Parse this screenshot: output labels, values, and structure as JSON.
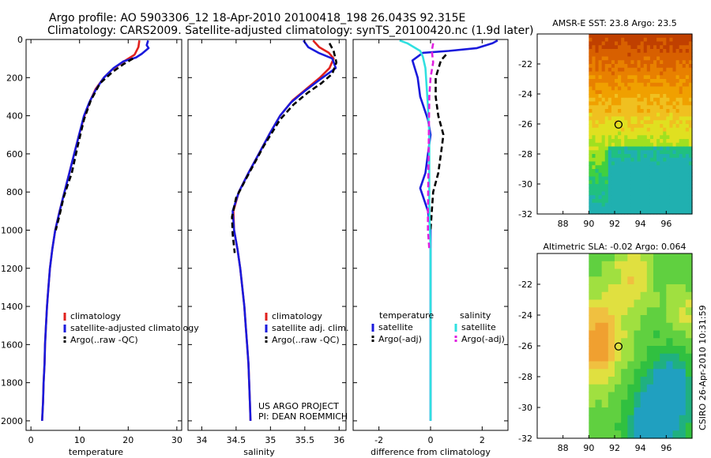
{
  "header": {
    "line1": "Argo profile: AO 5903306_12 18-Apr-2010 20100418_198 26.043S 92.315E",
    "line2": "Climatology: CARS2009. Satellite-adjusted climatology: synTS_20100420.nc (1.9d later)"
  },
  "stamp": "CSIRO 26-Apr-2010 10:31:59",
  "project_note": {
    "line1": "US ARGO PROJECT",
    "line2": "PI: DEAN ROEMMICH"
  },
  "colors": {
    "climatology": "#e0201c",
    "satellite": "#1a1adc",
    "argo": "#000000",
    "sat_salinity": "#30e0e0",
    "argo_salinity": "#e020e0",
    "axis": "#000000"
  },
  "chart_data": [
    {
      "id": "temperature",
      "type": "line",
      "xlabel": "temperature",
      "xlim": [
        -1,
        31
      ],
      "ylim": [
        2050,
        0
      ],
      "xticks": [
        0,
        10,
        20,
        30
      ],
      "yticks": [
        0,
        200,
        400,
        600,
        800,
        1000,
        1200,
        1400,
        1600,
        1800,
        2000
      ],
      "legend": [
        "climatology",
        "satellite-adjusted climatology",
        "Argo(..raw -QC)"
      ],
      "series": [
        {
          "name": "climatology",
          "color_key": "climatology",
          "dash": false,
          "points": [
            [
              22.3,
              5
            ],
            [
              22.1,
              40
            ],
            [
              21.3,
              80
            ],
            [
              18.8,
              120
            ],
            [
              16.6,
              160
            ],
            [
              15.0,
              200
            ],
            [
              13.3,
              260
            ],
            [
              12.2,
              320
            ],
            [
              11.0,
              400
            ],
            [
              9.9,
              500
            ],
            [
              8.9,
              600
            ],
            [
              7.9,
              700
            ],
            [
              6.9,
              800
            ],
            [
              5.9,
              900
            ],
            [
              5.0,
              1000
            ],
            [
              4.4,
              1100
            ],
            [
              3.9,
              1200
            ],
            [
              3.6,
              1300
            ],
            [
              3.3,
              1400
            ],
            [
              3.1,
              1500
            ],
            [
              2.9,
              1600
            ],
            [
              2.8,
              1700
            ],
            [
              2.6,
              1800
            ],
            [
              2.5,
              1900
            ],
            [
              2.3,
              2000
            ]
          ]
        },
        {
          "name": "satellite-adjusted climatology",
          "color_key": "satellite",
          "dash": false,
          "points": [
            [
              24.1,
              5
            ],
            [
              23.8,
              30
            ],
            [
              24.2,
              45
            ],
            [
              22.8,
              75
            ],
            [
              21.6,
              95
            ],
            [
              19.0,
              115
            ],
            [
              17.0,
              150
            ],
            [
              15.0,
              200
            ],
            [
              13.4,
              260
            ],
            [
              12.0,
              330
            ],
            [
              10.9,
              400
            ],
            [
              9.9,
              500
            ],
            [
              8.9,
              600
            ],
            [
              7.9,
              700
            ],
            [
              6.9,
              800
            ],
            [
              5.9,
              900
            ],
            [
              5.0,
              1000
            ],
            [
              4.4,
              1100
            ],
            [
              3.9,
              1200
            ],
            [
              3.6,
              1300
            ],
            [
              3.3,
              1400
            ],
            [
              3.1,
              1500
            ],
            [
              2.9,
              1600
            ],
            [
              2.8,
              1700
            ],
            [
              2.6,
              1800
            ],
            [
              2.5,
              1900
            ],
            [
              2.3,
              2000
            ]
          ]
        },
        {
          "name": "Argo(..raw -QC)",
          "color_key": "argo",
          "dash": true,
          "points": [
            [
              21.0,
              100
            ],
            [
              19.0,
              130
            ],
            [
              16.8,
              170
            ],
            [
              14.2,
              230
            ],
            [
              12.3,
              320
            ],
            [
              10.9,
              420
            ],
            [
              9.6,
              560
            ],
            [
              8.4,
              700
            ],
            [
              7.6,
              760
            ],
            [
              6.7,
              830
            ],
            [
              5.9,
              920
            ],
            [
              5.1,
              1000
            ]
          ]
        }
      ]
    },
    {
      "id": "salinity",
      "type": "line",
      "xlabel": "salinity",
      "xlim": [
        33.8,
        36.1
      ],
      "ylim": [
        2050,
        0
      ],
      "xticks": [
        34,
        34.5,
        35,
        35.5,
        36
      ],
      "yticks": [
        0,
        200,
        400,
        600,
        800,
        1000,
        1200,
        1400,
        1600,
        1800,
        2000
      ],
      "legend": [
        "climatology",
        "satellite adj. clim.",
        "Argo(..raw -QC)"
      ],
      "series": [
        {
          "name": "climatology",
          "color_key": "climatology",
          "dash": false,
          "points": [
            [
              35.62,
              5
            ],
            [
              35.71,
              40
            ],
            [
              35.85,
              70
            ],
            [
              35.92,
              100
            ],
            [
              35.86,
              150
            ],
            [
              35.72,
              200
            ],
            [
              35.52,
              260
            ],
            [
              35.32,
              320
            ],
            [
              35.14,
              400
            ],
            [
              34.98,
              500
            ],
            [
              34.83,
              600
            ],
            [
              34.68,
              700
            ],
            [
              34.54,
              800
            ],
            [
              34.46,
              900
            ],
            [
              34.47,
              1000
            ],
            [
              34.52,
              1100
            ],
            [
              34.56,
              1200
            ],
            [
              34.59,
              1300
            ],
            [
              34.62,
              1400
            ],
            [
              34.64,
              1500
            ],
            [
              34.66,
              1600
            ],
            [
              34.68,
              1700
            ],
            [
              34.69,
              1800
            ],
            [
              34.7,
              1900
            ],
            [
              34.71,
              2000
            ]
          ]
        },
        {
          "name": "satellite adj. clim.",
          "color_key": "satellite",
          "dash": false,
          "points": [
            [
              35.48,
              5
            ],
            [
              35.55,
              40
            ],
            [
              35.7,
              70
            ],
            [
              35.9,
              100
            ],
            [
              35.95,
              150
            ],
            [
              35.72,
              210
            ],
            [
              35.5,
              270
            ],
            [
              35.3,
              330
            ],
            [
              35.14,
              400
            ],
            [
              34.98,
              500
            ],
            [
              34.83,
              600
            ],
            [
              34.68,
              700
            ],
            [
              34.54,
              800
            ],
            [
              34.45,
              900
            ],
            [
              34.47,
              1000
            ],
            [
              34.52,
              1100
            ],
            [
              34.56,
              1200
            ],
            [
              34.59,
              1300
            ],
            [
              34.62,
              1400
            ],
            [
              34.64,
              1500
            ],
            [
              34.66,
              1600
            ],
            [
              34.68,
              1700
            ],
            [
              34.69,
              1800
            ],
            [
              34.7,
              1900
            ],
            [
              34.71,
              2000
            ]
          ]
        },
        {
          "name": "Argo(..raw -QC)",
          "color_key": "argo",
          "dash": true,
          "points": [
            [
              35.86,
              20
            ],
            [
              35.92,
              60
            ],
            [
              35.96,
              120
            ],
            [
              35.9,
              180
            ],
            [
              35.74,
              230
            ],
            [
              35.54,
              280
            ],
            [
              35.34,
              340
            ],
            [
              35.14,
              420
            ],
            [
              34.9,
              560
            ],
            [
              34.66,
              720
            ],
            [
              34.5,
              830
            ],
            [
              34.44,
              930
            ],
            [
              34.45,
              1020
            ],
            [
              34.48,
              1120
            ]
          ]
        }
      ]
    },
    {
      "id": "difference",
      "type": "line",
      "xlabel": "difference from climatology",
      "xlim": [
        -3.0,
        3.0
      ],
      "ylim": [
        2050,
        0
      ],
      "xticks": [
        -2,
        0,
        2
      ],
      "yticks": [
        0,
        200,
        400,
        600,
        800,
        1000,
        1200,
        1400,
        1600,
        1800,
        2000
      ],
      "legend_headers": [
        "temperature",
        "salinity"
      ],
      "legend": [
        "satellite",
        "Argo(-adj)",
        "satellite",
        "Argo(-adj)"
      ],
      "series": [
        {
          "name": "temperature satellite",
          "color_key": "satellite",
          "dash": false,
          "points": [
            [
              2.6,
              5
            ],
            [
              2.4,
              20
            ],
            [
              1.8,
              45
            ],
            [
              0.7,
              60
            ],
            [
              -0.3,
              70
            ],
            [
              -0.7,
              110
            ],
            [
              -0.5,
              200
            ],
            [
              -0.4,
              300
            ],
            [
              -0.1,
              420
            ],
            [
              0.0,
              500
            ],
            [
              -0.1,
              600
            ],
            [
              -0.2,
              700
            ],
            [
              -0.4,
              780
            ],
            [
              -0.1,
              900
            ],
            [
              0.0,
              1000
            ],
            [
              0.0,
              1200
            ],
            [
              0.0,
              1400
            ],
            [
              0.0,
              1600
            ],
            [
              0.0,
              1800
            ],
            [
              0.0,
              2000
            ]
          ]
        },
        {
          "name": "temperature Argo(-adj)",
          "color_key": "argo",
          "dash": true,
          "points": [
            [
              0.6,
              80
            ],
            [
              0.4,
              110
            ],
            [
              0.2,
              200
            ],
            [
              0.2,
              300
            ],
            [
              0.3,
              400
            ],
            [
              0.5,
              500
            ],
            [
              0.4,
              600
            ],
            [
              0.3,
              700
            ],
            [
              0.1,
              800
            ],
            [
              0.05,
              900
            ],
            [
              0.0,
              1000
            ]
          ]
        },
        {
          "name": "salinity satellite",
          "color_key": "sat_salinity",
          "dash": false,
          "points": [
            [
              -1.2,
              5
            ],
            [
              -0.9,
              20
            ],
            [
              -0.4,
              60
            ],
            [
              -0.3,
              90
            ],
            [
              -0.2,
              150
            ],
            [
              -0.15,
              250
            ],
            [
              -0.1,
              350
            ],
            [
              -0.05,
              500
            ],
            [
              -0.05,
              700
            ],
            [
              -0.05,
              900
            ],
            [
              0.0,
              1100
            ],
            [
              0.0,
              1300
            ],
            [
              0.0,
              1500
            ],
            [
              0.0,
              1700
            ],
            [
              0.0,
              1900
            ],
            [
              0.0,
              2000
            ]
          ]
        },
        {
          "name": "salinity Argo(-adj)",
          "color_key": "argo_salinity",
          "dash": true,
          "points": [
            [
              0.1,
              20
            ],
            [
              0.05,
              60
            ],
            [
              0.1,
              120
            ],
            [
              0.0,
              200
            ],
            [
              -0.05,
              300
            ],
            [
              -0.1,
              900
            ],
            [
              -0.1,
              1000
            ],
            [
              -0.05,
              1100
            ]
          ]
        }
      ]
    },
    {
      "id": "sst_map",
      "type": "heatmap",
      "title": "AMSR-E SST: 23.8 Argo: 23.5",
      "xlim": [
        86,
        98
      ],
      "ylim": [
        -32,
        -20
      ],
      "xticks": [
        88,
        90,
        92,
        94,
        96
      ],
      "yticks": [
        -22,
        -24,
        -26,
        -28,
        -30,
        -32
      ],
      "data_lon_range": [
        90,
        98
      ],
      "marker": {
        "lon": 92.3,
        "lat": -26.04
      }
    },
    {
      "id": "sla_map",
      "type": "heatmap",
      "title": "Altimetric SLA: -0.02 Argo: 0.064",
      "xlim": [
        86,
        98
      ],
      "ylim": [
        -32,
        -20
      ],
      "xticks": [
        88,
        90,
        92,
        94,
        96
      ],
      "yticks": [
        -22,
        -24,
        -26,
        -28,
        -30,
        -32
      ],
      "data_lon_range": [
        90,
        98
      ],
      "marker": {
        "lon": 92.3,
        "lat": -26.04
      }
    }
  ]
}
